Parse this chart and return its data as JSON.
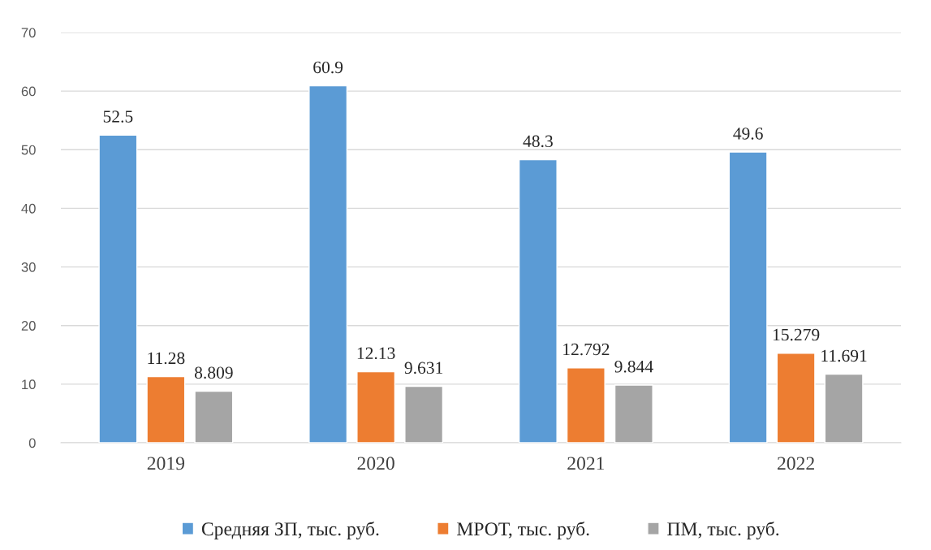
{
  "chart_data": {
    "type": "bar",
    "categories": [
      "2019",
      "2020",
      "2021",
      "2022"
    ],
    "series": [
      {
        "name": "Средняя ЗП, тыс. руб.",
        "color": "#5b9bd5",
        "values": [
          52.5,
          60.9,
          48.3,
          49.6
        ]
      },
      {
        "name": "МРОТ, тыс. руб.",
        "color": "#ed7d31",
        "values": [
          11.28,
          12.13,
          12.792,
          15.279
        ]
      },
      {
        "name": "ПМ, тыс. руб.",
        "color": "#a5a5a5",
        "values": [
          8.809,
          9.631,
          9.844,
          11.691
        ]
      }
    ],
    "ylim": [
      0,
      70
    ],
    "yticks": [
      0,
      10,
      20,
      30,
      40,
      50,
      60,
      70
    ],
    "grid": "y",
    "legend": "bottom",
    "data_labels": true
  }
}
